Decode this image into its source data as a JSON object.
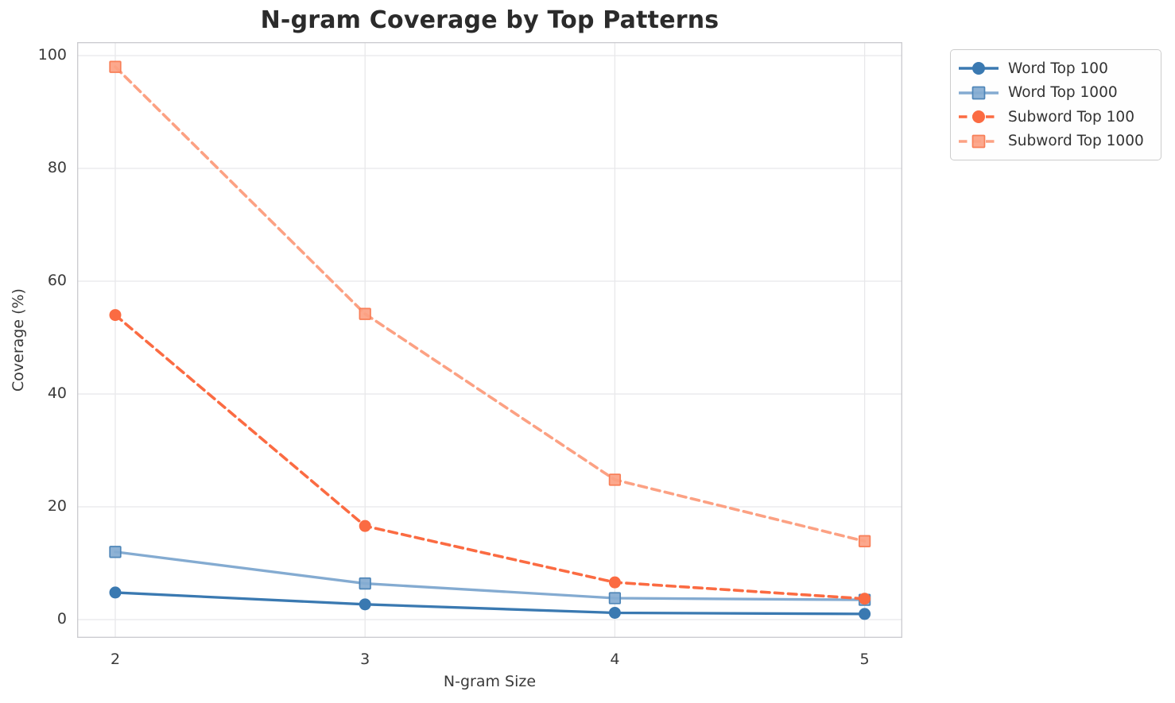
{
  "chart_data": {
    "type": "line",
    "title": "N-gram Coverage by Top Patterns",
    "xlabel": "N-gram Size",
    "ylabel": "Coverage (%)",
    "x": [
      2,
      3,
      4,
      5
    ],
    "xtick_labels": [
      "2",
      "3",
      "4",
      "5"
    ],
    "yticks": [
      0,
      20,
      40,
      60,
      80,
      100
    ],
    "ytick_labels": [
      "0",
      "20",
      "40",
      "60",
      "80",
      "100"
    ],
    "xlim": [
      1.85,
      5.15
    ],
    "ylim": [
      -3.2,
      102.4
    ],
    "grid": true,
    "legend_position": "upper right",
    "colors": {
      "grid": "#e8e8ea",
      "spine": "#cacace",
      "title_text": "#2b2b2b",
      "tick_text": "#3a3a3a",
      "legend_border": "#cccccc"
    },
    "series": [
      {
        "name": "Word Top 100",
        "marker": "circle",
        "line_style": "solid",
        "color": "#3a79b1",
        "edge": "#2f689c",
        "values": [
          4.8,
          2.7,
          1.2,
          1.0
        ]
      },
      {
        "name": "Word Top 1000",
        "marker": "square",
        "line_style": "solid",
        "color": "#84abd1",
        "edge": "#4f86b8",
        "values": [
          12.0,
          6.4,
          3.8,
          3.5
        ]
      },
      {
        "name": "Subword Top 100",
        "marker": "circle",
        "line_style": "dashed",
        "color": "#fb6b42",
        "edge": "#e55a31",
        "values": [
          54.0,
          16.6,
          6.6,
          3.7
        ]
      },
      {
        "name": "Subword Top 1000",
        "marker": "square",
        "line_style": "dashed",
        "color": "#fca183",
        "edge": "#f87f58",
        "values": [
          98.0,
          54.2,
          24.8,
          13.9
        ]
      }
    ]
  }
}
